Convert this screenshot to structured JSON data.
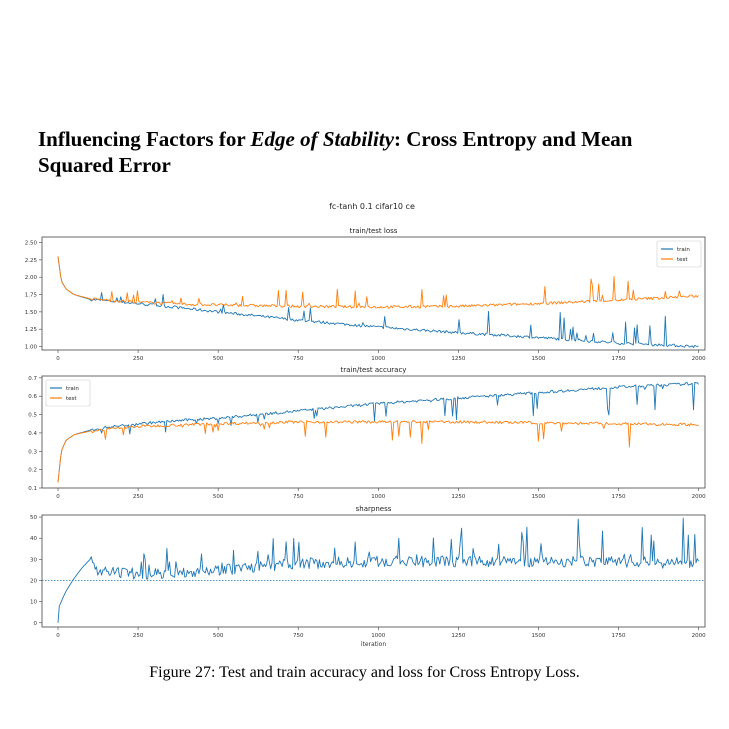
{
  "paper": {
    "section_heading_part1": "Influencing Factors for ",
    "section_heading_italic": "Edge of Stability",
    "section_heading_part2": ": Cross Entropy and Mean Squared Error",
    "figure_caption": "Figure 27: Test and train accuracy and loss for Cross Entropy Loss."
  },
  "colors": {
    "train": "#1f77b4",
    "test": "#ff7f0e",
    "axis": "#444444",
    "hline": "#1f77b4"
  },
  "chart_data": {
    "suptitle": "fc-tanh 0.1 cifar10 ce",
    "panels": [
      {
        "type": "line",
        "title": "train/test loss",
        "xlabel": "",
        "xlim": [
          -50,
          2020
        ],
        "ylim": [
          0.95,
          2.58
        ],
        "x_ticks": [
          "0",
          "250",
          "500",
          "750",
          "1000",
          "1250",
          "1500",
          "1750",
          "2000"
        ],
        "y_ticks": [
          "1.00",
          "1.25",
          "1.50",
          "1.75",
          "2.00",
          "2.25",
          "2.50"
        ],
        "legend": {
          "position": "top-right",
          "entries": [
            "train",
            "test"
          ]
        },
        "series": [
          {
            "name": "train",
            "color": "#1f77b4",
            "x": [
              0,
              10,
              25,
              50,
              100,
              150,
              250,
              400,
              500,
              750,
              1000,
              1250,
              1500,
              1750,
              2000
            ],
            "y": [
              2.3,
              1.95,
              1.83,
              1.75,
              1.68,
              1.66,
              1.62,
              1.55,
              1.5,
              1.38,
              1.28,
              1.2,
              1.13,
              1.05,
              1.0
            ]
          },
          {
            "name": "test",
            "color": "#ff7f0e",
            "x": [
              0,
              10,
              25,
              50,
              100,
              150,
              250,
              400,
              500,
              750,
              1000,
              1250,
              1500,
              1750,
              2000
            ],
            "y": [
              2.3,
              1.95,
              1.83,
              1.75,
              1.69,
              1.67,
              1.64,
              1.61,
              1.6,
              1.58,
              1.57,
              1.58,
              1.62,
              1.67,
              1.73
            ]
          }
        ]
      },
      {
        "type": "line",
        "title": "train/test accuracy",
        "xlabel": "",
        "xlim": [
          -50,
          2020
        ],
        "ylim": [
          0.1,
          0.71
        ],
        "x_ticks": [
          "0",
          "250",
          "500",
          "750",
          "1000",
          "1250",
          "1500",
          "1750",
          "2000"
        ],
        "y_ticks": [
          "0.1",
          "0.2",
          "0.3",
          "0.4",
          "0.5",
          "0.6",
          "0.7"
        ],
        "legend": {
          "position": "top-left",
          "entries": [
            "train",
            "test"
          ]
        },
        "series": [
          {
            "name": "train",
            "color": "#1f77b4",
            "x": [
              0,
              10,
              25,
              50,
              100,
              150,
              250,
              400,
              500,
              750,
              1000,
              1250,
              1500,
              1750,
              2000
            ],
            "y": [
              0.13,
              0.3,
              0.36,
              0.39,
              0.415,
              0.43,
              0.45,
              0.47,
              0.48,
              0.52,
              0.56,
              0.59,
              0.62,
              0.65,
              0.67
            ]
          },
          {
            "name": "test",
            "color": "#ff7f0e",
            "x": [
              0,
              10,
              25,
              50,
              100,
              150,
              250,
              400,
              500,
              750,
              1000,
              1250,
              1500,
              1750,
              2000
            ],
            "y": [
              0.13,
              0.3,
              0.36,
              0.39,
              0.41,
              0.42,
              0.435,
              0.445,
              0.45,
              0.46,
              0.46,
              0.46,
              0.455,
              0.45,
              0.445
            ]
          }
        ]
      },
      {
        "type": "line",
        "title": "sharpness",
        "xlabel": "iteration",
        "xlim": [
          -50,
          2020
        ],
        "ylim": [
          -2,
          51
        ],
        "x_ticks": [
          "0",
          "250",
          "500",
          "750",
          "1000",
          "1250",
          "1500",
          "1750",
          "2000"
        ],
        "y_ticks": [
          "0",
          "10",
          "20",
          "30",
          "40",
          "50"
        ],
        "hline": {
          "y": 20,
          "style": "dotted"
        },
        "series": [
          {
            "name": "",
            "color": "#1f77b4",
            "x": [
              0,
              2,
              5,
              10,
              25,
              50,
              75,
              100,
              115,
              120,
              250,
              500,
              750,
              1000,
              1250,
              1500,
              1750,
              2000
            ],
            "y": [
              0,
              8,
              8,
              10,
              15,
              21,
              26,
              30,
              26,
              24,
              23,
              25,
              28,
              29,
              29,
              29,
              29,
              28
            ]
          }
        ]
      }
    ]
  }
}
